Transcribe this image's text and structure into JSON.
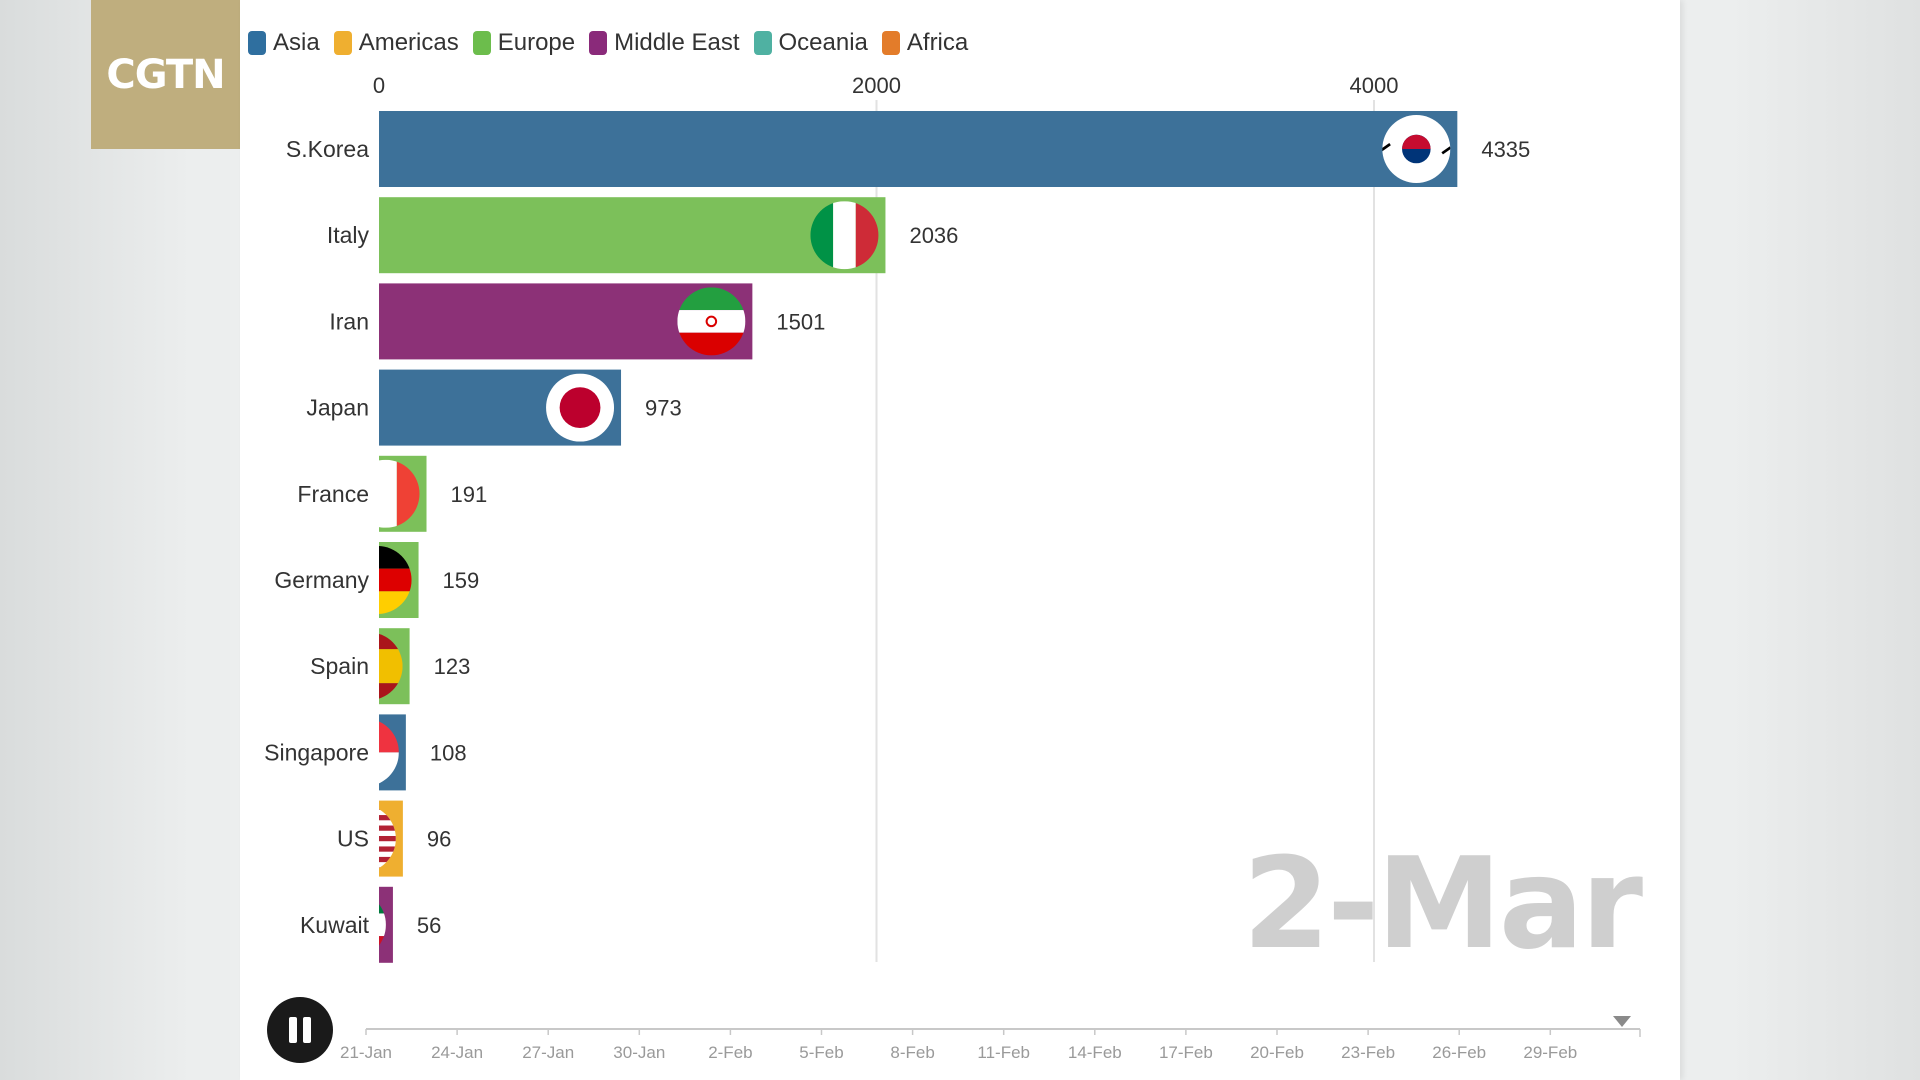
{
  "brand": {
    "logo_text": "CGTN"
  },
  "legend": [
    {
      "name": "Asia",
      "color": "#2f6f9f"
    },
    {
      "name": "Americas",
      "color": "#efaf30"
    },
    {
      "name": "Europe",
      "color": "#6cbd4c"
    },
    {
      "name": "Middle East",
      "color": "#8a2a7a"
    },
    {
      "name": "Oceania",
      "color": "#4fb1a2"
    },
    {
      "name": "Africa",
      "color": "#e37c2a"
    }
  ],
  "current_date": "2-Mar",
  "timeline": {
    "labels": [
      "21-Jan",
      "24-Jan",
      "27-Jan",
      "30-Jan",
      "2-Feb",
      "5-Feb",
      "8-Feb",
      "11-Feb",
      "14-Feb",
      "17-Feb",
      "20-Feb",
      "23-Feb",
      "26-Feb",
      "29-Feb"
    ]
  },
  "chart_data": {
    "type": "bar",
    "orientation": "horizontal",
    "x_ticks": [
      0,
      2000,
      4000
    ],
    "xlim": [
      0,
      4000
    ],
    "categories": [
      "S.Korea",
      "Italy",
      "Iran",
      "Japan",
      "France",
      "Germany",
      "Spain",
      "Singapore",
      "US",
      "Kuwait"
    ],
    "values": [
      4335,
      2036,
      1501,
      973,
      191,
      159,
      123,
      108,
      96,
      56
    ],
    "regions": [
      "Asia",
      "Europe",
      "Middle East",
      "Asia",
      "Europe",
      "Europe",
      "Europe",
      "Asia",
      "Americas",
      "Middle East"
    ],
    "bar_colors": [
      "#3d7199",
      "#7cc05a",
      "#8c3177",
      "#3d7199",
      "#7cc05a",
      "#7cc05a",
      "#7cc05a",
      "#3d7199",
      "#efaf30",
      "#8c3177"
    ],
    "flag_icons": [
      "south-korea-flag-icon",
      "italy-flag-icon",
      "iran-flag-icon",
      "japan-flag-icon",
      "france-flag-icon",
      "germany-flag-icon",
      "spain-flag-icon",
      "singapore-flag-icon",
      "us-flag-icon",
      "kuwait-flag-icon"
    ],
    "grid": true,
    "legend_position": "top-left"
  }
}
